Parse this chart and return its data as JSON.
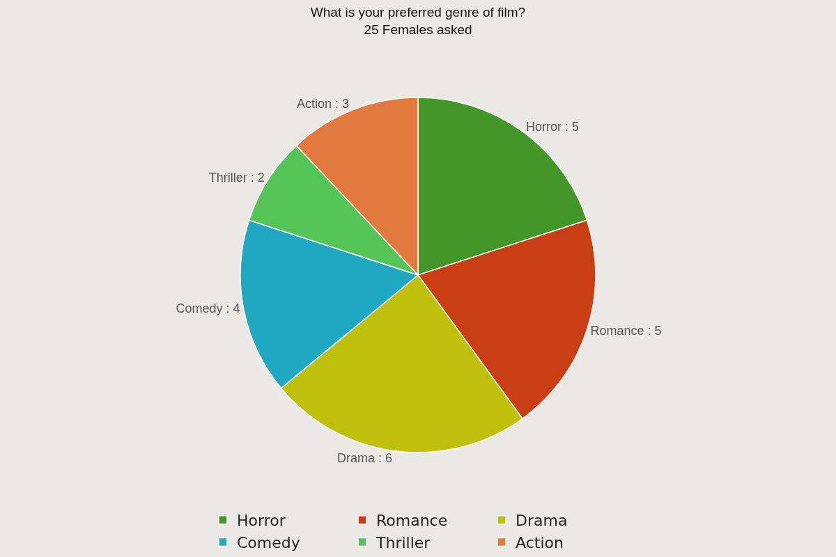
{
  "chart_data": {
    "type": "pie",
    "title": "What is your preferred genre of film?",
    "subtitle": "25 Females asked",
    "categories": [
      "Horror",
      "Romance",
      "Drama",
      "Comedy",
      "Thriller",
      "Action"
    ],
    "values": [
      5,
      5,
      6,
      4,
      2,
      3
    ],
    "value_labels": [
      "Horror : 5",
      "Romance : 5",
      "Drama : 6",
      "Comedy : 4",
      "Thriller : 2",
      "Action : 3"
    ],
    "colors": [
      "#43962a",
      "#c93e15",
      "#bfc00b",
      "#20a8c2",
      "#55c458",
      "#e27a3f"
    ],
    "legend": "bottom"
  }
}
